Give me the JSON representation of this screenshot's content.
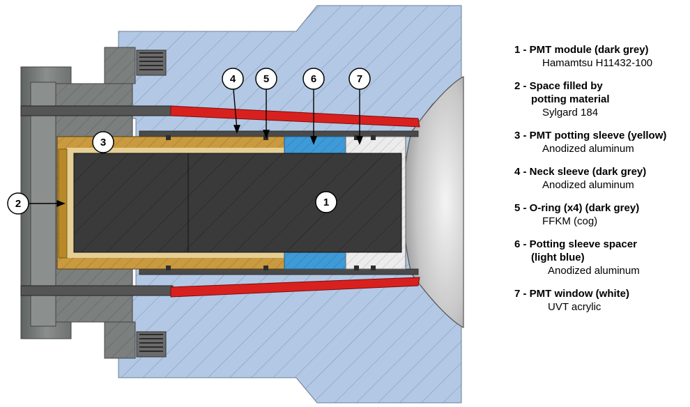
{
  "callouts": {
    "c1": "1",
    "c2": "2",
    "c3": "3",
    "c4": "4",
    "c5": "5",
    "c6": "6",
    "c7": "7"
  },
  "legend": {
    "items": [
      {
        "title_lines": [
          "1 - PMT module (dark grey)"
        ],
        "subtitle": "Hamamtsu H11432-100"
      },
      {
        "title_lines": [
          "2 - Space filled by",
          "potting material"
        ],
        "subtitle": "Sylgard 184"
      },
      {
        "title_lines": [
          "3 - PMT potting sleeve (yellow)"
        ],
        "subtitle": "Anodized aluminum"
      },
      {
        "title_lines": [
          "4 - Neck sleeve (dark grey)"
        ],
        "subtitle": "Anodized aluminum"
      },
      {
        "title_lines": [
          "5 - O-ring (x4) (dark grey)"
        ],
        "subtitle": "FFKM (cog)"
      },
      {
        "title_lines": [
          "6 - Potting sleeve spacer",
          "(light blue)"
        ],
        "subtitle": "Anodized aluminum"
      },
      {
        "title_lines": [
          "7 - PMT window (white)"
        ],
        "subtitle": "UVT acrylic"
      }
    ]
  },
  "colors": {
    "housing_blue": "#b3c8e4",
    "metal_grey": "#7b7f7e",
    "pmt_dark": "#3a3a3a",
    "sleeve_yellow": "#c99a3f",
    "spacer_blue": "#3f9ad8",
    "window_white": "#ececec",
    "cable_red": "#d8211f"
  }
}
